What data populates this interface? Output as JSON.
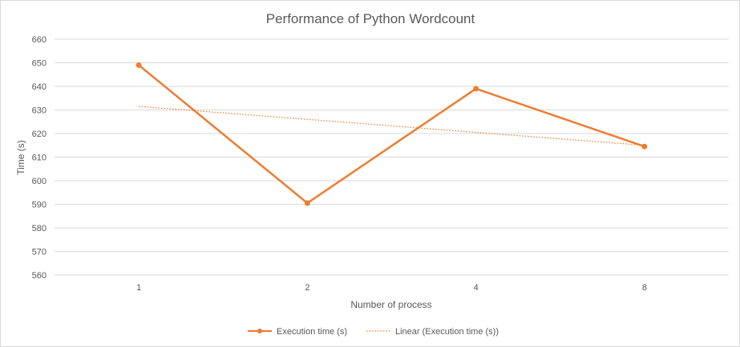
{
  "chart_data": {
    "type": "line",
    "title": "Performance of Python Wordcount",
    "xlabel": "Number  of process",
    "ylabel": "Time (s)",
    "categories": [
      "1",
      "2",
      "4",
      "8"
    ],
    "ylim": [
      560,
      660
    ],
    "yticks": [
      560,
      570,
      580,
      590,
      600,
      610,
      620,
      630,
      640,
      650,
      660
    ],
    "grid": true,
    "legend_position": "bottom",
    "series": [
      {
        "name": "Execution time (s)",
        "values": [
          649,
          590.5,
          639,
          614.5
        ],
        "color": "#ED7D31",
        "style": "solid-with-markers"
      },
      {
        "name": "Linear (Execution time (s))",
        "values": [
          631.5,
          626,
          620.5,
          615
        ],
        "color": "#ED7D31",
        "style": "dotted-trendline"
      }
    ]
  }
}
